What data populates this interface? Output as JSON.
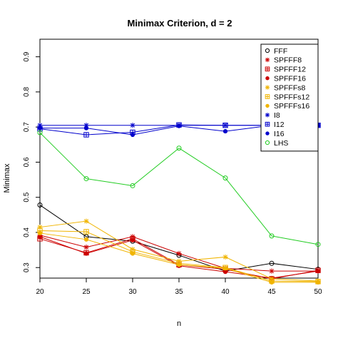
{
  "chart_data": {
    "type": "line",
    "title": "Minimax Criterion, d = 2",
    "xlabel": "n",
    "ylabel": "Minimax",
    "x": [
      20,
      25,
      30,
      35,
      40,
      45,
      50
    ],
    "xlim": [
      20,
      50
    ],
    "ylim": [
      0.27,
      0.95
    ],
    "xticks": [
      20,
      25,
      30,
      35,
      40,
      45,
      50
    ],
    "yticks": [
      0.3,
      0.4,
      0.5,
      0.6,
      0.7,
      0.8,
      0.9
    ],
    "xtick_labels": [
      "20",
      "25",
      "30",
      "35",
      "40",
      "45",
      "50"
    ],
    "ytick_labels": [
      "0.3",
      "0.4",
      "0.5",
      "0.6",
      "0.7",
      "0.8",
      "0.9"
    ],
    "grid": false,
    "legend_position": "top-right",
    "series": [
      {
        "name": "FFF",
        "color": "#000000",
        "marker": "circle-open",
        "values": [
          0.478,
          0.388,
          0.375,
          0.335,
          0.29,
          0.312,
          0.295
        ]
      },
      {
        "name": "SPFFF8",
        "color": "#cc0000",
        "marker": "asterisk",
        "values": [
          0.392,
          0.358,
          0.388,
          0.34,
          0.298,
          0.29,
          0.29
        ]
      },
      {
        "name": "SPFFF12",
        "color": "#cc0000",
        "marker": "square-plus",
        "values": [
          0.382,
          0.342,
          0.382,
          0.308,
          0.295,
          0.268,
          0.292
        ]
      },
      {
        "name": "SPFFF16",
        "color": "#cc0000",
        "marker": "dot",
        "values": [
          0.388,
          0.34,
          0.378,
          0.305,
          0.288,
          0.27,
          0.29
        ]
      },
      {
        "name": "SPFFFs8",
        "color": "#f0b400",
        "marker": "asterisk",
        "values": [
          0.415,
          0.432,
          0.352,
          0.318,
          0.33,
          0.268,
          0.262
        ]
      },
      {
        "name": "SPFFFs12",
        "color": "#f0b400",
        "marker": "square-plus",
        "values": [
          0.405,
          0.402,
          0.345,
          0.312,
          0.3,
          0.262,
          0.26
        ]
      },
      {
        "name": "SPFFFs16",
        "color": "#f0b400",
        "marker": "dot",
        "values": [
          0.398,
          0.38,
          0.34,
          0.308,
          0.298,
          0.258,
          0.258
        ]
      },
      {
        "name": "I8",
        "color": "#0000cc",
        "marker": "asterisk",
        "values": [
          0.705,
          0.705,
          0.705,
          0.705,
          0.705,
          0.705,
          0.705
        ]
      },
      {
        "name": "I12",
        "color": "#0000cc",
        "marker": "square-plus",
        "values": [
          0.695,
          0.678,
          0.685,
          0.706,
          0.705,
          0.705,
          0.705
        ]
      },
      {
        "name": "I16",
        "color": "#0000cc",
        "marker": "dot",
        "values": [
          0.697,
          0.697,
          0.678,
          0.703,
          0.688,
          0.705,
          0.705
        ]
      },
      {
        "name": "LHS",
        "color": "#22cc22",
        "marker": "circle-open",
        "values": [
          0.684,
          0.553,
          0.533,
          0.64,
          0.555,
          0.39,
          0.366
        ]
      }
    ]
  }
}
